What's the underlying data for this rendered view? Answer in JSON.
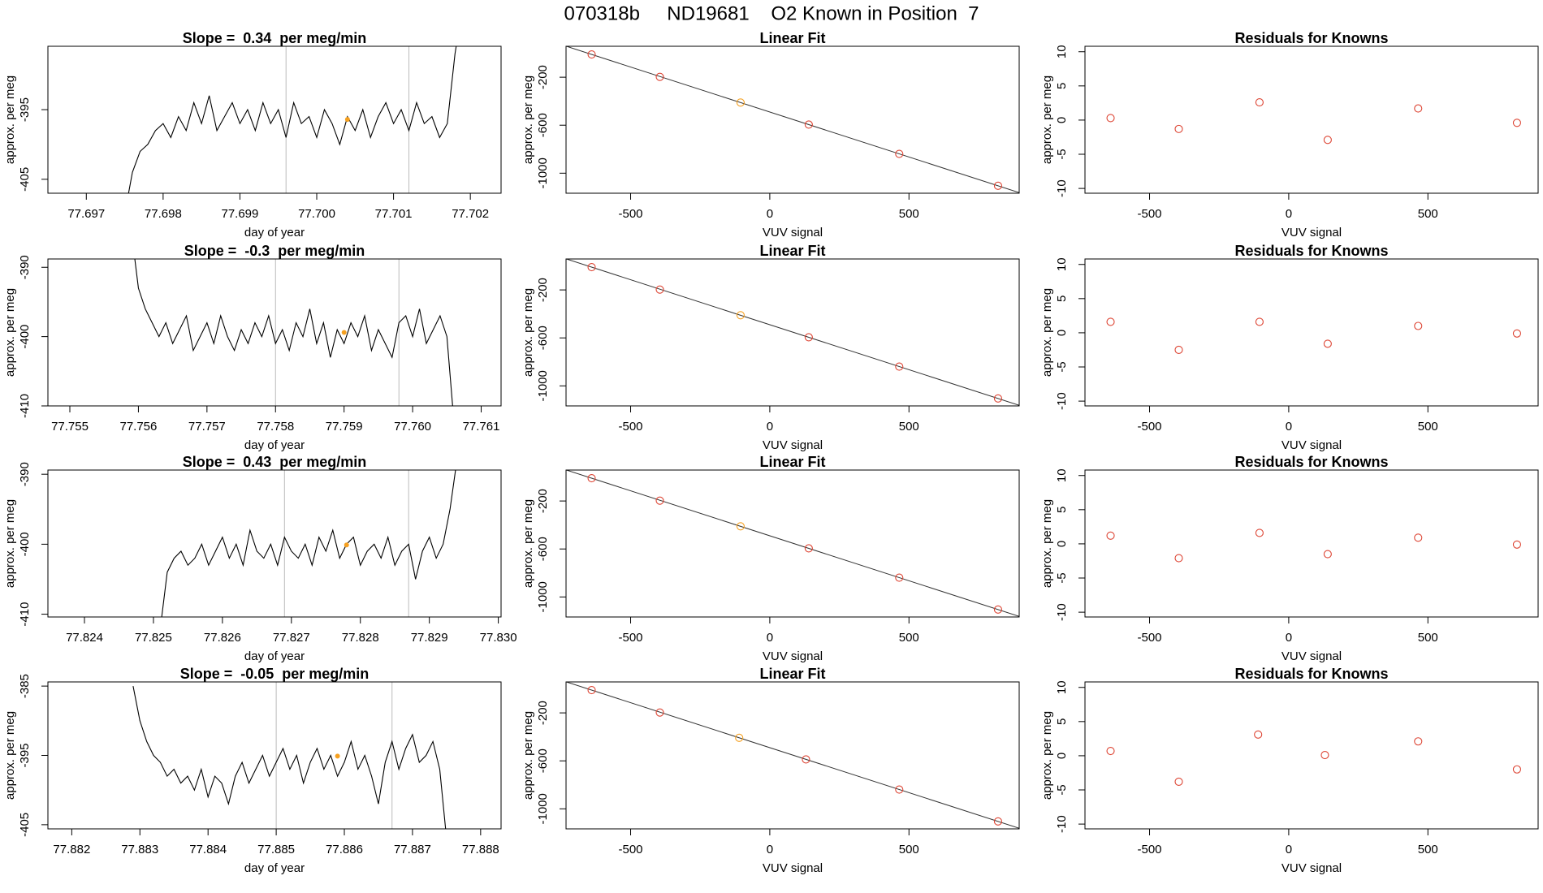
{
  "title": "070318b     ND19681    O2 Known in Position  7",
  "chart_data": [
    {
      "type": "line",
      "title": "Slope =  0.34  per meg/min",
      "xlabel": "day of year",
      "ylabel": "approx. per meg",
      "color": "#000000",
      "x": [
        77.6975,
        77.6976,
        77.6977,
        77.6978,
        77.6979,
        77.698,
        77.6981,
        77.6982,
        77.6983,
        77.6984,
        77.6985,
        77.6986,
        77.6987,
        77.6988,
        77.6989,
        77.699,
        77.6991,
        77.6992,
        77.6993,
        77.6994,
        77.6995,
        77.6996,
        77.6997,
        77.6998,
        77.6999,
        77.7,
        77.7001,
        77.7002,
        77.7003,
        77.7004,
        77.7005,
        77.7006,
        77.7007,
        77.7008,
        77.7009,
        77.701,
        77.7011,
        77.7012,
        77.7013,
        77.7014,
        77.7015,
        77.7016,
        77.7017,
        77.7018,
        77.7019
      ],
      "values": [
        -410,
        -404,
        -401,
        -400,
        -398,
        -397,
        -399,
        -396,
        -398,
        -394,
        -397,
        -393,
        -398,
        -396,
        -394,
        -397,
        -395,
        -398,
        -394,
        -397,
        -395,
        -399,
        -394,
        -397,
        -396,
        -399,
        -395,
        -397,
        -400,
        -396,
        -398,
        -395,
        -399,
        -396,
        -394,
        -397,
        -395,
        -398,
        -394,
        -397,
        -396,
        -399,
        -397,
        -387,
        -380
      ],
      "xlim": [
        77.6965,
        77.7024
      ],
      "ylim": [
        -407,
        -385.9
      ],
      "xticks": [
        77.697,
        77.698,
        77.699,
        {
          "value": 77.7,
          "label": "77.700"
        },
        77.701,
        77.702
      ],
      "yticks": [
        -395,
        -405
      ],
      "vlines": [
        77.6996,
        77.7012
      ],
      "highlight": {
        "x": 77.7004,
        "value": -396.4,
        "color": "#f5a020"
      }
    },
    {
      "type": "scatter",
      "title": "Linear Fit",
      "xlabel": "VUV signal",
      "ylabel": "approx. per meg",
      "x": [
        -640,
        -395,
        -105,
        140,
        465,
        820
      ],
      "values": [
        -10,
        -197,
        -411,
        -595,
        -839,
        -1105
      ],
      "colors": [
        "#dd4433",
        "#dd4433",
        "#f5a020",
        "#dd4433",
        "#dd4433",
        "#dd4433"
      ],
      "fit": {
        "intercept": -490,
        "slope": -0.75,
        "color": "#333333"
      },
      "xlim": [
        -732,
        896
      ],
      "ylim": [
        -1167,
        58
      ],
      "xticks": [
        -500,
        0,
        500
      ],
      "yticks": [
        -200,
        -600,
        -1000
      ]
    },
    {
      "type": "scatter",
      "title": "Residuals for Knowns",
      "xlabel": "VUV signal",
      "ylabel": "approx. per meg",
      "x": [
        -640,
        -395,
        -105,
        140,
        465,
        820
      ],
      "values": [
        0.3,
        -1.3,
        2.6,
        -2.9,
        1.7,
        -0.4
      ],
      "color": "#dd4433",
      "xlim": [
        -732,
        896
      ],
      "ylim": [
        -10.7,
        10.8
      ],
      "xticks": [
        -500,
        0,
        500
      ],
      "yticks": [
        10,
        5,
        0,
        -5,
        -10
      ]
    },
    {
      "type": "line",
      "title": "Slope =  -0.3  per meg/min",
      "xlabel": "day of year",
      "ylabel": "approx. per meg",
      "color": "#000000",
      "x": [
        77.7559,
        77.756,
        77.7561,
        77.7562,
        77.7563,
        77.7564,
        77.7565,
        77.7566,
        77.7567,
        77.7568,
        77.7569,
        77.757,
        77.7571,
        77.7572,
        77.7573,
        77.7574,
        77.7575,
        77.7576,
        77.7577,
        77.7578,
        77.7579,
        77.758,
        77.7581,
        77.7582,
        77.7583,
        77.7584,
        77.7585,
        77.7586,
        77.7587,
        77.7588,
        77.7589,
        77.759,
        77.7591,
        77.7592,
        77.7593,
        77.7594,
        77.7595,
        77.7596,
        77.7597,
        77.7598,
        77.7599,
        77.76,
        77.7601,
        77.7602,
        77.7603,
        77.7604,
        77.7605,
        77.7606
      ],
      "values": [
        -385,
        -393,
        -396,
        -398,
        -400,
        -398,
        -401,
        -399,
        -397,
        -402,
        -400,
        -398,
        -401,
        -397,
        -400,
        -402,
        -399,
        -401,
        -398,
        -400,
        -397,
        -401,
        -399,
        -402,
        -398,
        -400,
        -396,
        -401,
        -398,
        -403,
        -399,
        -401,
        -398,
        -400,
        -397,
        -402,
        -399,
        -401,
        -403,
        -398,
        -397,
        -400,
        -396,
        -401,
        -399,
        -397,
        -400,
        -412
      ],
      "xlim": [
        77.75468,
        77.76129
      ],
      "ylim": [
        -410,
        -388.8
      ],
      "xticks": [
        77.755,
        77.756,
        77.757,
        77.758,
        77.759,
        {
          "value": 77.76,
          "label": "77.760"
        },
        77.761
      ],
      "yticks": [
        -390,
        -400,
        -410
      ],
      "vlines": [
        77.758,
        77.7598
      ],
      "highlight": {
        "x": 77.759,
        "value": -399.4,
        "color": "#f5a020"
      }
    },
    {
      "type": "scatter",
      "title": "Linear Fit",
      "xlabel": "VUV signal",
      "ylabel": "approx. per meg",
      "x": [
        -640,
        -395,
        -105,
        140,
        465,
        820
      ],
      "values": [
        -10,
        -197,
        -411,
        -595,
        -839,
        -1105
      ],
      "colors": [
        "#dd4433",
        "#dd4433",
        "#f5a020",
        "#dd4433",
        "#dd4433",
        "#dd4433"
      ],
      "fit": {
        "intercept": -490,
        "slope": -0.75,
        "color": "#333333"
      },
      "xlim": [
        -732,
        896
      ],
      "ylim": [
        -1167,
        58
      ],
      "xticks": [
        -500,
        0,
        500
      ],
      "yticks": [
        -200,
        -600,
        -1000
      ]
    },
    {
      "type": "scatter",
      "title": "Residuals for Knowns",
      "xlabel": "VUV signal",
      "ylabel": "approx. per meg",
      "x": [
        -640,
        -395,
        -105,
        140,
        465,
        820
      ],
      "values": [
        1.6,
        -2.5,
        1.6,
        -1.6,
        1.0,
        -0.1
      ],
      "color": "#dd4433",
      "xlim": [
        -732,
        896
      ],
      "ylim": [
        -10.7,
        10.8
      ],
      "xticks": [
        -500,
        0,
        500
      ],
      "yticks": [
        10,
        5,
        0,
        -5,
        -10
      ]
    },
    {
      "type": "line",
      "title": "Slope =  0.43  per meg/min",
      "xlabel": "day of year",
      "ylabel": "approx. per meg",
      "color": "#000000",
      "x": [
        77.8251,
        77.8252,
        77.8253,
        77.8254,
        77.8255,
        77.8256,
        77.8257,
        77.8258,
        77.8259,
        77.826,
        77.8261,
        77.8262,
        77.8263,
        77.8264,
        77.8265,
        77.8266,
        77.8267,
        77.8268,
        77.8269,
        77.827,
        77.8271,
        77.8272,
        77.8273,
        77.8274,
        77.8275,
        77.8276,
        77.8277,
        77.8278,
        77.8279,
        77.828,
        77.8281,
        77.8282,
        77.8283,
        77.8284,
        77.8285,
        77.8286,
        77.8287,
        77.8288,
        77.8289,
        77.829,
        77.8291,
        77.8292,
        77.8293,
        77.8294
      ],
      "values": [
        -412,
        -404,
        -402,
        -401,
        -403,
        -402,
        -400,
        -403,
        -401,
        -399,
        -402,
        -400,
        -403,
        -398,
        -401,
        -402,
        -400,
        -403,
        -399,
        -401,
        -402,
        -400,
        -403,
        -399,
        -401,
        -398,
        -402,
        -400,
        -399,
        -403,
        -401,
        -400,
        -402,
        -399,
        -403,
        -401,
        -400,
        -405,
        -401,
        -399,
        -402,
        -400,
        -395,
        -388
      ],
      "xlim": [
        77.82347,
        77.83004
      ],
      "ylim": [
        -410.4,
        -389.4
      ],
      "xticks": [
        77.824,
        77.825,
        77.826,
        77.827,
        77.828,
        77.829,
        {
          "value": 77.83,
          "label": "77.830"
        }
      ],
      "yticks": [
        -390,
        -400,
        -410
      ],
      "vlines": [
        77.8269,
        77.8287
      ],
      "highlight": {
        "x": 77.8278,
        "value": -400.1,
        "color": "#f5a020"
      }
    },
    {
      "type": "scatter",
      "title": "Linear Fit",
      "xlabel": "VUV signal",
      "ylabel": "approx. per meg",
      "x": [
        -640,
        -395,
        -105,
        140,
        465,
        820
      ],
      "values": [
        -10,
        -197,
        -411,
        -595,
        -839,
        -1105
      ],
      "colors": [
        "#dd4433",
        "#dd4433",
        "#f5a020",
        "#dd4433",
        "#dd4433",
        "#dd4433"
      ],
      "fit": {
        "intercept": -490,
        "slope": -0.75,
        "color": "#333333"
      },
      "xlim": [
        -732,
        896
      ],
      "ylim": [
        -1167,
        58
      ],
      "xticks": [
        -500,
        0,
        500
      ],
      "yticks": [
        -200,
        -600,
        -1000
      ]
    },
    {
      "type": "scatter",
      "title": "Residuals for Knowns",
      "xlabel": "VUV signal",
      "ylabel": "approx. per meg",
      "x": [
        -640,
        -395,
        -105,
        140,
        465,
        820
      ],
      "values": [
        1.2,
        -2.1,
        1.6,
        -1.5,
        0.9,
        -0.1
      ],
      "color": "#dd4433",
      "xlim": [
        -732,
        896
      ],
      "ylim": [
        -10.7,
        10.8
      ],
      "xticks": [
        -500,
        0,
        500
      ],
      "yticks": [
        10,
        5,
        0,
        -5,
        -10
      ]
    },
    {
      "type": "line",
      "title": "Slope =  -0.05  per meg/min",
      "xlabel": "day of year",
      "ylabel": "approx. per meg",
      "color": "#000000",
      "x": [
        77.8829,
        77.883,
        77.8831,
        77.8832,
        77.8833,
        77.8834,
        77.8835,
        77.8836,
        77.8837,
        77.8838,
        77.8839,
        77.884,
        77.8841,
        77.8842,
        77.8843,
        77.8844,
        77.8845,
        77.8846,
        77.8847,
        77.8848,
        77.8849,
        77.885,
        77.8851,
        77.8852,
        77.8853,
        77.8854,
        77.8855,
        77.8856,
        77.8857,
        77.8858,
        77.8859,
        77.886,
        77.8861,
        77.8862,
        77.8863,
        77.8864,
        77.8865,
        77.8866,
        77.8867,
        77.8868,
        77.8869,
        77.887,
        77.8871,
        77.8872,
        77.8873,
        77.8874,
        77.8875
      ],
      "values": [
        -385,
        -390,
        -393,
        -395,
        -396,
        -398,
        -397,
        -399,
        -398,
        -400,
        -397,
        -401,
        -398,
        -399,
        -402,
        -398,
        -396,
        -399,
        -397,
        -395,
        -398,
        -396,
        -394,
        -397,
        -395,
        -399,
        -396,
        -394,
        -397,
        -395,
        -398,
        -396,
        -393,
        -397,
        -395,
        -398,
        -402,
        -396,
        -393,
        -397,
        -394,
        -392,
        -396,
        -395,
        -393,
        -397,
        -407
      ],
      "xlim": [
        77.88165,
        77.8883
      ],
      "ylim": [
        -405.6,
        -384.4
      ],
      "xticks": [
        77.882,
        77.883,
        77.884,
        77.885,
        77.886,
        77.887,
        77.888
      ],
      "yticks": [
        -385,
        -395,
        -405
      ],
      "vlines": [
        77.885,
        77.8867
      ],
      "highlight": {
        "x": 77.8859,
        "value": -395.1,
        "color": "#f5a020"
      }
    },
    {
      "type": "scatter",
      "title": "Linear Fit",
      "xlabel": "VUV signal",
      "ylabel": "approx. per meg",
      "x": [
        -640,
        -395,
        -110,
        130,
        465,
        820
      ],
      "values": [
        -10,
        -197,
        -408,
        -588,
        -839,
        -1105
      ],
      "colors": [
        "#dd4433",
        "#dd4433",
        "#f5a020",
        "#dd4433",
        "#dd4433",
        "#dd4433"
      ],
      "fit": {
        "intercept": -490,
        "slope": -0.75,
        "color": "#333333"
      },
      "xlim": [
        -732,
        896
      ],
      "ylim": [
        -1167,
        58
      ],
      "xticks": [
        -500,
        0,
        500
      ],
      "yticks": [
        -200,
        -600,
        -1000
      ]
    },
    {
      "type": "scatter",
      "title": "Residuals for Knowns",
      "xlabel": "VUV signal",
      "ylabel": "approx. per meg",
      "x": [
        -640,
        -395,
        -110,
        130,
        465,
        820
      ],
      "values": [
        0.7,
        -3.8,
        3.1,
        0.1,
        2.1,
        -2.0
      ],
      "color": "#dd4433",
      "xlim": [
        -732,
        896
      ],
      "ylim": [
        -10.7,
        10.8
      ],
      "xticks": [
        -500,
        0,
        500
      ],
      "yticks": [
        10,
        5,
        0,
        -5,
        -10
      ]
    }
  ]
}
